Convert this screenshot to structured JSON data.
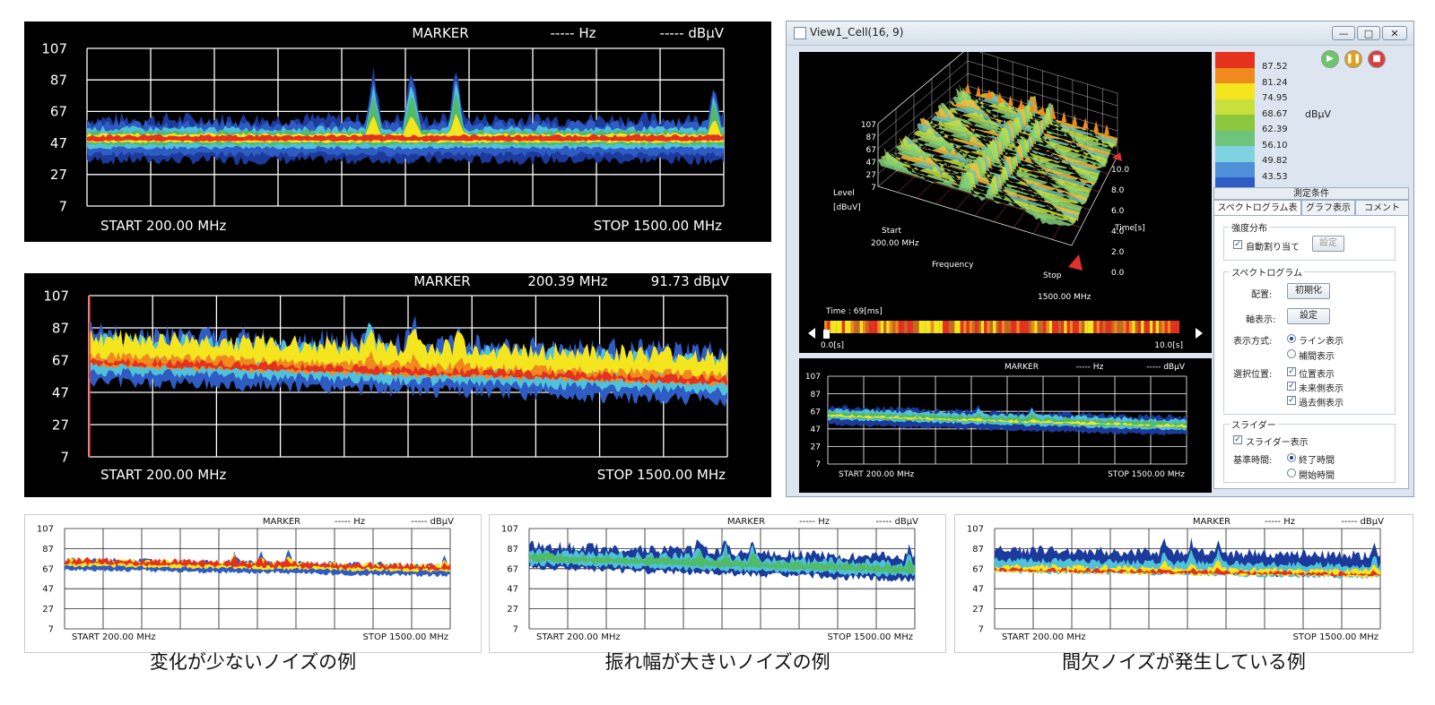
{
  "colors": {
    "red": "#e4321e",
    "orange": "#f08a1e",
    "yellow": "#f5e51e",
    "lime": "#a6d23a",
    "green": "#4fbb6b",
    "cyan": "#4fc1d9",
    "blue": "#2e5cc4",
    "darkblue": "#1c3a9c"
  },
  "charts": {
    "top": {
      "marker_label": "MARKER",
      "marker_hz": "----- Hz",
      "marker_db": "----- dBμV",
      "start": "START   200.00 MHz",
      "stop": "STOP   1500.00 MHz",
      "yticks": [
        "107",
        "87",
        "67",
        "47",
        "27",
        "7"
      ]
    },
    "mid": {
      "marker_label": "MARKER",
      "marker_hz": "200.39 MHz",
      "marker_db": "91.73 dBμV",
      "start": "START   200.00 MHz",
      "stop": "STOP   1500.00 MHz",
      "yticks": [
        "107",
        "87",
        "67",
        "47",
        "27",
        "7"
      ]
    },
    "small1": {
      "marker_label": "MARKER",
      "marker_hz": "----- Hz",
      "marker_db": "----- dBμV",
      "start": "START   200.00 MHz",
      "stop": "STOP   1500.00 MHz",
      "yticks": [
        "107",
        "87",
        "67",
        "47",
        "27",
        "7"
      ]
    },
    "small2": {
      "marker_label": "MARKER",
      "marker_hz": "----- Hz",
      "marker_db": "----- dBμV",
      "start": "START   200.00 MHz",
      "stop": "STOP   1500.00 MHz",
      "yticks": [
        "107",
        "87",
        "67",
        "47",
        "27",
        "7"
      ]
    },
    "small3": {
      "marker_label": "MARKER",
      "marker_hz": "----- Hz",
      "marker_db": "----- dBμV",
      "start": "START   200.00 MHz",
      "stop": "STOP   1500.00 MHz",
      "yticks": [
        "107",
        "87",
        "67",
        "47",
        "27",
        "7"
      ]
    },
    "sub": {
      "marker_label": "MARKER",
      "marker_hz": "----- Hz",
      "marker_db": "----- dBμV",
      "start": "START   200.00 MHz",
      "stop": "STOP   1500.00 MHz",
      "yticks": [
        "107",
        "87",
        "67",
        "47",
        "27",
        "7"
      ]
    }
  },
  "window": {
    "title": "View1_Cell(16, 9)",
    "min_btn": "—",
    "max_btn": "□",
    "close_btn": "✕",
    "view3d": {
      "level_label": "Level",
      "unit_label": "[dBuV]",
      "level_ticks": [
        "107",
        "87",
        "67",
        "47",
        "27",
        "7"
      ],
      "start_label": "Start",
      "start_freq": "200.00 MHz",
      "freq_label": "Frequency",
      "stop_label": "Stop",
      "stop_freq": "1500.00 MHz",
      "time_ticks": [
        "10.0",
        "8.0",
        "6.0",
        "4.0",
        "2.0",
        "0.0"
      ],
      "time_label": "Time[s]",
      "time_readout": "Time : 69[ms]",
      "timeline_start": "0.0[s]",
      "timeline_end": "10.0[s]"
    },
    "legend": {
      "values": [
        "87.52",
        "81.24",
        "74.95",
        "68.67",
        "62.39",
        "56.10",
        "49.82",
        "43.53"
      ],
      "unit": "dBμV",
      "colors": [
        "#e4321e",
        "#f08a1e",
        "#f5e51e",
        "#c8e03c",
        "#8cc63f",
        "#6ec47a",
        "#7fd3e0",
        "#4f8fd8",
        "#2e5cc4"
      ]
    },
    "panel": {
      "header": "測定条件",
      "tabs": [
        "スペクトログラム表示",
        "グラフ表示",
        "コメント"
      ],
      "intensity_group": "強度分布",
      "auto_assign": "自動割り当て",
      "settings_btn": "設定",
      "spectro_group": "スペクトログラム",
      "layout_label": "配置:",
      "init_btn": "初期化",
      "axis_label": "軸表示:",
      "axis_btn": "設定",
      "display_mode_label": "表示方式:",
      "line_display": "ライン表示",
      "interp_display": "補間表示",
      "select_pos_label": "選択位置:",
      "pos_display": "位置表示",
      "future_display": "未来側表示",
      "past_display": "過去側表示",
      "slider_group": "スライダー",
      "slider_display": "スライダー表示",
      "ref_time_label": "基準時間:",
      "end_time": "終了時間",
      "start_time": "開始時間"
    }
  },
  "captions": [
    "変化が少ないノイズの例",
    "振れ幅が大きいノイズの例",
    "間欠ノイズが発生している例"
  ]
}
